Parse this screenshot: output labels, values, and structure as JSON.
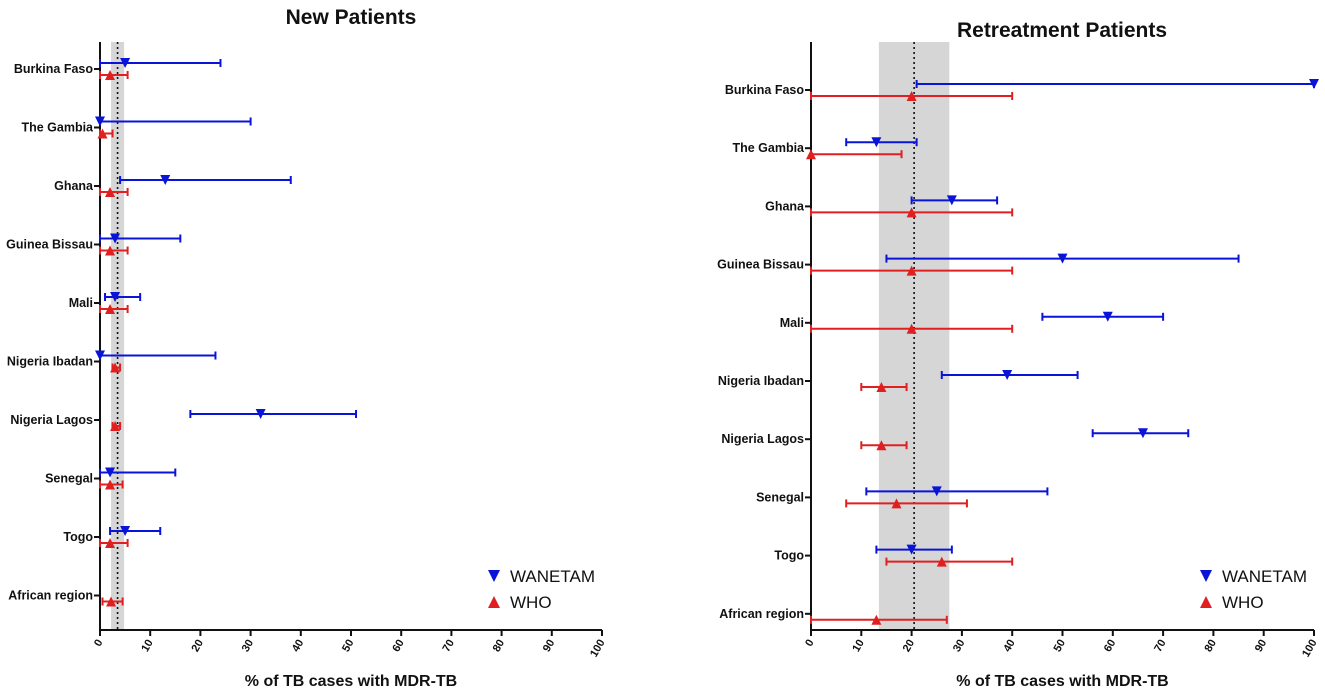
{
  "chart_data": [
    {
      "type": "forest",
      "title": "New Patients",
      "xlabel": "% of TB cases with MDR-TB",
      "xlim": [
        0,
        100
      ],
      "xticks": [
        0,
        10,
        20,
        30,
        40,
        50,
        60,
        70,
        80,
        90,
        100
      ],
      "reference": {
        "value": 3.5,
        "band": [
          2.2,
          4.8
        ]
      },
      "categories": [
        "Burkina Faso",
        "The Gambia",
        "Ghana",
        "Guinea Bissau",
        "Mali",
        "Nigeria Ibadan",
        "Nigeria Lagos",
        "Senegal",
        "Togo",
        "African region"
      ],
      "series": [
        {
          "name": "WANETAM",
          "color": "#0a14d8",
          "marker": "triangle-down",
          "estimates": [
            5,
            0,
            13,
            3,
            3,
            0,
            32,
            2,
            5,
            null
          ],
          "lower": [
            0,
            0,
            4,
            0,
            1,
            0,
            18,
            0,
            2,
            null
          ],
          "upper": [
            24,
            30,
            38,
            16,
            8,
            23,
            51,
            15,
            12,
            null
          ]
        },
        {
          "name": "WHO",
          "color": "#e02020",
          "marker": "triangle-up",
          "estimates": [
            2,
            0.5,
            2,
            2,
            2,
            3,
            3,
            2,
            2,
            2.2
          ],
          "lower": [
            0,
            0,
            0,
            0,
            0,
            2.5,
            2.5,
            0,
            0,
            0.5
          ],
          "upper": [
            5.5,
            2.5,
            5.5,
            5.5,
            5.5,
            4,
            4,
            4.5,
            5.5,
            4.5
          ]
        }
      ],
      "legend": {
        "position": "bottom-right",
        "entries": [
          "WANETAM",
          "WHO"
        ]
      }
    },
    {
      "type": "forest",
      "title": "Retreatment Patients",
      "xlabel": "% of TB cases with MDR-TB",
      "xlim": [
        0,
        100
      ],
      "xticks": [
        0,
        10,
        20,
        30,
        40,
        50,
        60,
        70,
        80,
        90,
        100
      ],
      "reference": {
        "value": 20.5,
        "band": [
          13.5,
          27.5
        ]
      },
      "categories": [
        "Burkina Faso",
        "The Gambia",
        "Ghana",
        "Guinea Bissau",
        "Mali",
        "Nigeria Ibadan",
        "Nigeria Lagos",
        "Senegal",
        "Togo",
        "African region"
      ],
      "series": [
        {
          "name": "WANETAM",
          "color": "#0a14d8",
          "marker": "triangle-down",
          "estimates": [
            100,
            13,
            28,
            50,
            59,
            39,
            66,
            25,
            20,
            null
          ],
          "lower": [
            21,
            7,
            20,
            15,
            46,
            26,
            56,
            11,
            13,
            null
          ],
          "upper": [
            100,
            21,
            37,
            85,
            70,
            53,
            75,
            47,
            28,
            null
          ]
        },
        {
          "name": "WHO",
          "color": "#e02020",
          "marker": "triangle-up",
          "estimates": [
            20,
            0,
            20,
            20,
            20,
            14,
            14,
            17,
            26,
            13
          ],
          "lower": [
            0,
            0,
            0,
            0,
            0,
            10,
            10,
            7,
            15,
            0
          ],
          "upper": [
            40,
            18,
            40,
            40,
            40,
            19,
            19,
            31,
            40,
            27
          ]
        }
      ],
      "legend": {
        "position": "bottom-right",
        "entries": [
          "WANETAM",
          "WHO"
        ]
      }
    }
  ]
}
